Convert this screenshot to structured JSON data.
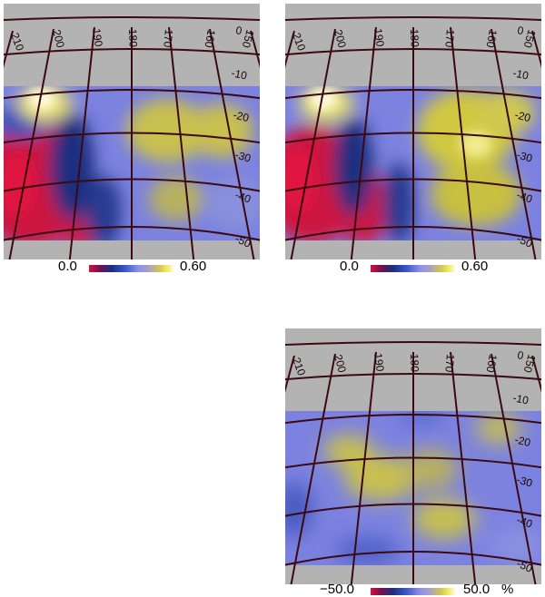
{
  "panels": [
    {
      "id": "top-left",
      "ra_labels": [
        "210",
        "200",
        "190",
        "180",
        "170",
        "160",
        "150"
      ],
      "dec_labels": [
        "0",
        "-10",
        "-20",
        "-30",
        "-40",
        "-50"
      ],
      "colorbar": {
        "min_label": "0.0",
        "max_label": "0.60",
        "unit": ""
      },
      "colors": {
        "background": "#b3b3b3",
        "grid": "#3a0a10"
      }
    },
    {
      "id": "top-right",
      "ra_labels": [
        "210",
        "200",
        "190",
        "180",
        "170",
        "160",
        "150"
      ],
      "dec_labels": [
        "0",
        "-10",
        "-20",
        "-30",
        "-40",
        "-50"
      ],
      "colorbar": {
        "min_label": "0.0",
        "max_label": "0.60",
        "unit": ""
      },
      "colors": {
        "background": "#b3b3b3",
        "grid": "#3a0a10"
      }
    },
    {
      "id": "bottom-right",
      "ra_labels": [
        "210",
        "200",
        "190",
        "180",
        "170",
        "160",
        "150"
      ],
      "dec_labels": [
        "0",
        "-10",
        "-20",
        "-30",
        "-40",
        "-50"
      ],
      "colorbar": {
        "min_label": "−50.0",
        "max_label": "50.0",
        "unit": "%"
      },
      "colors": {
        "background": "#b3b3b3",
        "grid": "#3a0a10"
      }
    }
  ]
}
